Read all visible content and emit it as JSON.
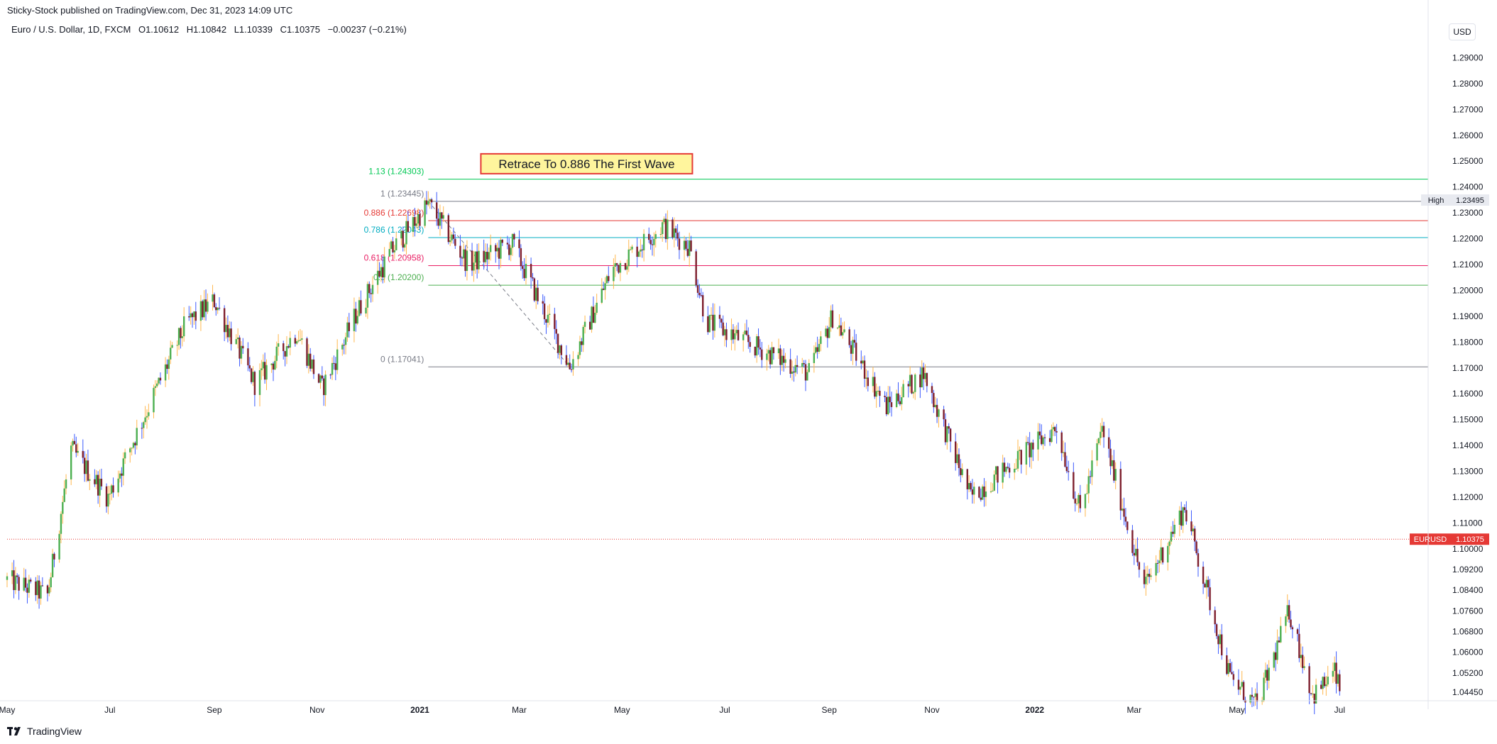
{
  "header": {
    "publish_line": "Sticky-Stock published on TradingView.com, Dec 31, 2023 14:09 UTC",
    "symbol": "Euro / U.S. Dollar, 1D, FXCM",
    "open": "O1.10612",
    "high": "H1.10842",
    "low": "L1.10339",
    "close": "C1.10375",
    "change": "−0.00237 (−0.21%)",
    "currency": "USD"
  },
  "footer": {
    "brand": "TradingView"
  },
  "colors": {
    "up": "#4caf50",
    "down": "#7e1f2e",
    "wick_up": "#ffb74d",
    "wick_down": "#3d5afe",
    "price_line": "#e53935",
    "fib_113": "#00c853",
    "fib_1": "#787b86",
    "fib_0886": "#e53935",
    "fib_0786": "#00acc1",
    "fib_0618": "#e91e63",
    "fib_05": "#4caf50",
    "fib_0": "#787b86"
  },
  "chart_data": {
    "type": "candlestick",
    "symbol": "EURUSD",
    "timeframe": "1D",
    "ylim": [
      1.0418,
      1.3
    ],
    "y_ticks": [
      "1.29000",
      "1.28000",
      "1.27000",
      "1.26000",
      "1.25000",
      "1.24000",
      "1.23000",
      "1.22000",
      "1.21000",
      "1.20000",
      "1.19000",
      "1.18000",
      "1.17000",
      "1.16000",
      "1.15000",
      "1.14000",
      "1.13000",
      "1.12000",
      "1.11000",
      "1.10000",
      "1.09200",
      "1.08400",
      "1.07600",
      "1.06800",
      "1.06000",
      "1.05200",
      "1.04450"
    ],
    "x_ticks": [
      "May",
      "Jul",
      "Sep",
      "Nov",
      "2021",
      "Mar",
      "May",
      "Jul",
      "Sep",
      "Nov",
      "2022",
      "Mar",
      "May",
      "Jul"
    ],
    "x_tick_bold": [
      "2021",
      "2022"
    ],
    "x_range": [
      "2020-05",
      "2022-08"
    ],
    "x_ticks_dates": [
      "2020-05-01",
      "2020-07-01",
      "2020-09-01",
      "2020-11-01",
      "2021-01-01",
      "2021-03-01",
      "2021-05-01",
      "2021-07-01",
      "2021-09-01",
      "2021-11-01",
      "2022-01-01",
      "2022-03-01",
      "2022-05-01",
      "2022-07-01"
    ],
    "price_path": [
      {
        "date": "2020-05-01",
        "price": 1.088
      },
      {
        "date": "2020-05-25",
        "price": 1.082
      },
      {
        "date": "2020-06-08",
        "price": 1.1385
      },
      {
        "date": "2020-06-30",
        "price": 1.12
      },
      {
        "date": "2020-07-15",
        "price": 1.142
      },
      {
        "date": "2020-08-15",
        "price": 1.187
      },
      {
        "date": "2020-09-01",
        "price": 1.196
      },
      {
        "date": "2020-09-25",
        "price": 1.164
      },
      {
        "date": "2020-10-20",
        "price": 1.184
      },
      {
        "date": "2020-11-04",
        "price": 1.162
      },
      {
        "date": "2020-11-25",
        "price": 1.192
      },
      {
        "date": "2020-12-15",
        "price": 1.215
      },
      {
        "date": "2021-01-06",
        "price": 1.2334
      },
      {
        "date": "2021-01-30",
        "price": 1.21
      },
      {
        "date": "2021-02-25",
        "price": 1.218
      },
      {
        "date": "2021-03-31",
        "price": 1.1704
      },
      {
        "date": "2021-04-25",
        "price": 1.208
      },
      {
        "date": "2021-05-25",
        "price": 1.225
      },
      {
        "date": "2021-06-10",
        "price": 1.217
      },
      {
        "date": "2021-06-20",
        "price": 1.188
      },
      {
        "date": "2021-07-20",
        "price": 1.178
      },
      {
        "date": "2021-08-20",
        "price": 1.168
      },
      {
        "date": "2021-09-03",
        "price": 1.19
      },
      {
        "date": "2021-10-05",
        "price": 1.155
      },
      {
        "date": "2021-10-27",
        "price": 1.168
      },
      {
        "date": "2021-11-24",
        "price": 1.12
      },
      {
        "date": "2022-01-14",
        "price": 1.147
      },
      {
        "date": "2022-01-28",
        "price": 1.114
      },
      {
        "date": "2022-02-10",
        "price": 1.146
      },
      {
        "date": "2022-03-07",
        "price": 1.085
      },
      {
        "date": "2022-03-31",
        "price": 1.116
      },
      {
        "date": "2022-04-27",
        "price": 1.05
      },
      {
        "date": "2022-05-13",
        "price": 1.039
      },
      {
        "date": "2022-06-01",
        "price": 1.076
      },
      {
        "date": "2022-06-15",
        "price": 1.043
      },
      {
        "date": "2022-06-28",
        "price": 1.052
      },
      {
        "date": "2022-07-01",
        "price": 1.045
      }
    ],
    "last_price": {
      "symbol": "EURUSD",
      "value": "1.10375",
      "price": 1.10375
    },
    "high_marker": {
      "label": "High",
      "value": "1.23495",
      "price": 1.23495
    },
    "fibonacci": {
      "start": {
        "date": "2021-01-06",
        "price": 1.23445
      },
      "end": {
        "date": "2021-03-31",
        "price": 1.17041
      },
      "levels": [
        {
          "label": "1.13 (1.24303)",
          "price": 1.24303,
          "color_key": "fib_113"
        },
        {
          "label": "1 (1.23445)",
          "price": 1.23445,
          "color_key": "fib_1"
        },
        {
          "label": "0.886 (1.22698)",
          "price": 1.22698,
          "color_key": "fib_0886"
        },
        {
          "label": "0.786 (1.22043)",
          "price": 1.22043,
          "color_key": "fib_0786"
        },
        {
          "label": "0.618 (1.20958)",
          "price": 1.20958,
          "color_key": "fib_0618"
        },
        {
          "label": "0.5 (1.20200)",
          "price": 1.202,
          "color_key": "fib_05"
        },
        {
          "label": "0 (1.17041)",
          "price": 1.17041,
          "color_key": "fib_0"
        }
      ]
    },
    "annotation": {
      "text": "Retrace To 0.886 The First Wave",
      "date": "2021-04-10",
      "price": 1.249
    }
  }
}
